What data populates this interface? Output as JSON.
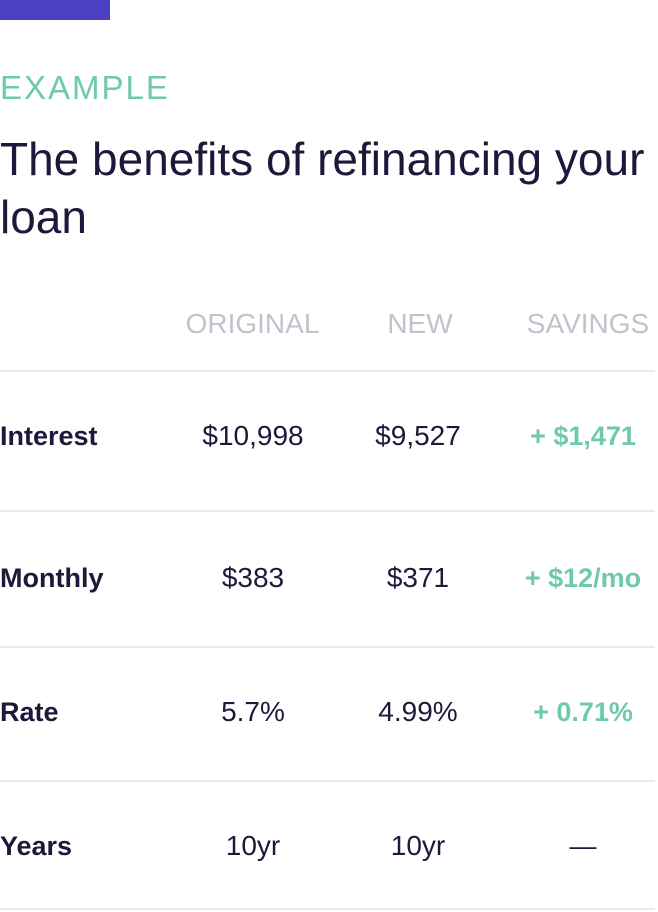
{
  "eyebrow": "EXAMPLE",
  "title": "The benefits of refinancing your loan",
  "table": {
    "headers": {
      "original": "ORIGINAL",
      "new": "NEW",
      "savings": "SAVINGS"
    },
    "rows": [
      {
        "label": "Interest",
        "original": "$10,998",
        "new": "$9,527",
        "savings": "+ $1,471"
      },
      {
        "label": "Monthly",
        "original": "$383",
        "new": "$371",
        "savings": "+ $12/mo"
      },
      {
        "label": "Rate",
        "original": "5.7%",
        "new": "4.99%",
        "savings": "+ 0.71%"
      },
      {
        "label": "Years",
        "original": "10yr",
        "new": "10yr",
        "savings": "—"
      }
    ]
  },
  "colors": {
    "accent": "#4b3fc4",
    "savings_green": "#6fcba7",
    "text_dark": "#1c1a3a",
    "header_gray": "#c2c2cc"
  }
}
